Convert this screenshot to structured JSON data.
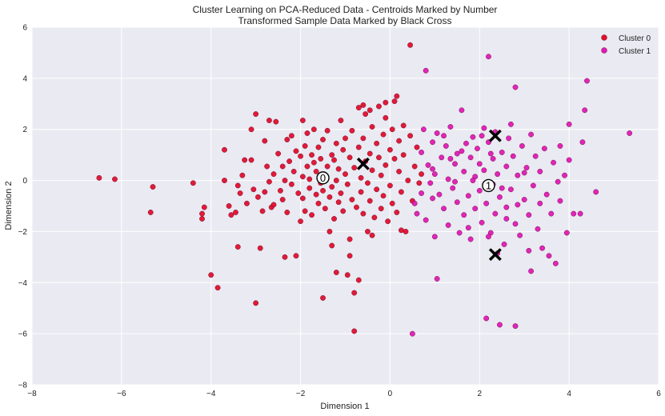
{
  "chart_data": {
    "type": "scatter",
    "title": "Cluster Learning on PCA-Reduced Data - Centroids Marked by Number",
    "subtitle": "Transformed Sample Data Marked by Black Cross",
    "xlabel": "Dimension 1",
    "ylabel": "Dimension 2",
    "xlim": [
      -8,
      6
    ],
    "ylim": [
      -8,
      6
    ],
    "xticks": [
      "−8",
      "−6",
      "−4",
      "−2",
      "0",
      "2",
      "4",
      "6"
    ],
    "yticks": [
      "−8",
      "−6",
      "−4",
      "−2",
      "0",
      "2",
      "4",
      "6"
    ],
    "xtick_values": [
      -8,
      -6,
      -4,
      -2,
      0,
      2,
      4,
      6
    ],
    "ytick_values": [
      -8,
      -6,
      -4,
      -2,
      0,
      2,
      4,
      6
    ],
    "grid": true,
    "legend_position": "top-right",
    "background": "#eaeaf2",
    "series": [
      {
        "name": "Cluster 0",
        "color": "#e0102b",
        "points": [
          [
            -6.5,
            0.1
          ],
          [
            -6.15,
            0.05
          ],
          [
            -5.3,
            -0.25
          ],
          [
            -5.35,
            -1.25
          ],
          [
            -4.4,
            -0.1
          ],
          [
            -4.2,
            -1.3
          ],
          [
            -4.2,
            -1.5
          ],
          [
            -4.15,
            -1.05
          ],
          [
            -4.0,
            -3.7
          ],
          [
            -3.85,
            -4.2
          ],
          [
            -3.7,
            1.2
          ],
          [
            -3.7,
            0.0
          ],
          [
            -3.6,
            -1.0
          ],
          [
            -3.55,
            -1.35
          ],
          [
            -3.45,
            -1.25
          ],
          [
            -3.4,
            -0.2
          ],
          [
            -3.4,
            -2.6
          ],
          [
            -3.3,
            0.2
          ],
          [
            -3.25,
            0.8
          ],
          [
            -3.2,
            -0.9
          ],
          [
            -3.1,
            0.8
          ],
          [
            -3.1,
            2.0
          ],
          [
            -3.05,
            -0.35
          ],
          [
            -3.0,
            -4.8
          ],
          [
            -3.0,
            2.6
          ],
          [
            -2.95,
            -0.65
          ],
          [
            -2.9,
            -2.65
          ],
          [
            -2.85,
            -1.2
          ],
          [
            -2.8,
            -0.45
          ],
          [
            -2.75,
            0.55
          ],
          [
            -2.7,
            2.35
          ],
          [
            -2.65,
            -1.05
          ],
          [
            -2.6,
            0.25
          ],
          [
            -2.6,
            -0.95
          ],
          [
            -2.55,
            2.3
          ],
          [
            -2.5,
            1.05
          ],
          [
            -2.45,
            -0.4
          ],
          [
            -2.4,
            0.55
          ],
          [
            -2.4,
            -0.75
          ],
          [
            -2.35,
            0.0
          ],
          [
            -2.3,
            -1.25
          ],
          [
            -2.3,
            1.6
          ],
          [
            -2.25,
            0.75
          ],
          [
            -2.2,
            1.75
          ],
          [
            -2.2,
            -0.15
          ],
          [
            -2.15,
            0.35
          ],
          [
            -2.1,
            1.15
          ],
          [
            -2.05,
            -0.5
          ],
          [
            -2.0,
            0.95
          ],
          [
            -2.0,
            -1.6
          ],
          [
            -1.95,
            0.15
          ],
          [
            -1.95,
            -0.7
          ],
          [
            -1.9,
            1.35
          ],
          [
            -1.9,
            -1.2
          ],
          [
            -1.85,
            0.55
          ],
          [
            -1.85,
            1.85
          ],
          [
            -1.8,
            -0.3
          ],
          [
            -1.8,
            0.05
          ],
          [
            -1.75,
            1.0
          ],
          [
            -1.75,
            -1.35
          ],
          [
            -1.7,
            0.7
          ],
          [
            -1.7,
            2.0
          ],
          [
            -1.65,
            -0.55
          ],
          [
            -1.65,
            0.35
          ],
          [
            -1.6,
            1.3
          ],
          [
            -1.6,
            -0.9
          ],
          [
            -1.55,
            0.85
          ],
          [
            -1.55,
            -0.1
          ],
          [
            -1.5,
            1.6
          ],
          [
            -1.5,
            -0.4
          ],
          [
            -1.45,
            0.2
          ],
          [
            -1.45,
            -1.1
          ],
          [
            -1.4,
            1.95
          ],
          [
            -1.4,
            0.55
          ],
          [
            -1.35,
            -0.65
          ],
          [
            -1.35,
            -2.0
          ],
          [
            -1.3,
            1.0
          ],
          [
            -1.3,
            -0.25
          ],
          [
            -1.25,
            0.8
          ],
          [
            -1.25,
            -1.5
          ],
          [
            -1.2,
            1.45
          ],
          [
            -1.2,
            0.0
          ],
          [
            -1.15,
            -0.85
          ],
          [
            -1.15,
            0.45
          ],
          [
            -1.1,
            2.35
          ],
          [
            -1.1,
            -0.5
          ],
          [
            -1.05,
            1.2
          ],
          [
            -1.05,
            -1.2
          ],
          [
            -1.0,
            0.25
          ],
          [
            -1.0,
            1.65
          ],
          [
            -0.95,
            -0.15
          ],
          [
            -0.95,
            -3.7
          ],
          [
            -0.9,
            0.9
          ],
          [
            -0.9,
            -2.3
          ],
          [
            -0.85,
            1.95
          ],
          [
            -0.85,
            -0.75
          ],
          [
            -0.8,
            0.5
          ],
          [
            -0.8,
            -4.4
          ],
          [
            -0.8,
            -5.9
          ],
          [
            -0.75,
            -1.05
          ],
          [
            -0.7,
            1.3
          ],
          [
            -0.7,
            2.85
          ],
          [
            -0.7,
            -3.9
          ],
          [
            -0.65,
            0.1
          ],
          [
            -0.65,
            -0.45
          ],
          [
            -0.6,
            1.65
          ],
          [
            -0.6,
            -1.3
          ],
          [
            -0.55,
            2.6
          ],
          [
            -0.55,
            0.75
          ],
          [
            -0.5,
            -2.0
          ],
          [
            -0.5,
            -0.1
          ],
          [
            -0.45,
            1.05
          ],
          [
            -0.45,
            -0.8
          ],
          [
            -0.4,
            2.1
          ],
          [
            -0.4,
            0.4
          ],
          [
            -0.35,
            -1.45
          ],
          [
            -0.3,
            1.45
          ],
          [
            -0.3,
            -0.35
          ],
          [
            -0.25,
            2.9
          ],
          [
            -0.25,
            0.9
          ],
          [
            -0.2,
            -1.1
          ],
          [
            -0.2,
            0.2
          ],
          [
            -0.15,
            1.8
          ],
          [
            -0.15,
            -0.6
          ],
          [
            -0.1,
            2.45
          ],
          [
            -0.1,
            0.6
          ],
          [
            -0.05,
            -1.6
          ],
          [
            0.0,
            1.2
          ],
          [
            0.0,
            -0.2
          ],
          [
            0.05,
            2.0
          ],
          [
            0.05,
            -0.9
          ],
          [
            0.1,
            0.85
          ],
          [
            0.1,
            3.1
          ],
          [
            0.15,
            -1.25
          ],
          [
            0.2,
            1.55
          ],
          [
            0.2,
            0.35
          ],
          [
            0.25,
            -0.45
          ],
          [
            0.3,
            2.15
          ],
          [
            0.3,
            1.0
          ],
          [
            0.35,
            -2.0
          ],
          [
            0.4,
            0.0
          ],
          [
            0.45,
            1.75
          ],
          [
            0.45,
            5.3
          ],
          [
            0.5,
            -0.8
          ],
          [
            0.55,
            0.55
          ],
          [
            0.6,
            1.3
          ],
          [
            0.65,
            -0.1
          ],
          [
            0.7,
            0.25
          ],
          [
            -1.5,
            -4.6
          ],
          [
            -2.35,
            -3.0
          ],
          [
            -2.1,
            -2.95
          ],
          [
            -1.2,
            -3.6
          ],
          [
            -0.9,
            -2.95
          ],
          [
            -1.3,
            -2.55
          ],
          [
            -0.4,
            -2.15
          ],
          [
            0.25,
            -1.95
          ],
          [
            -0.6,
            2.95
          ],
          [
            -0.45,
            2.75
          ],
          [
            0.15,
            3.3
          ],
          [
            -0.1,
            3.05
          ],
          [
            -2.8,
            1.55
          ],
          [
            -3.35,
            -0.5
          ],
          [
            -2.7,
            -0.05
          ],
          [
            -1.95,
            2.35
          ]
        ]
      },
      {
        "name": "Cluster 1",
        "color": "#e01ab4",
        "points": [
          [
            0.5,
            -6.0
          ],
          [
            0.55,
            -0.9
          ],
          [
            0.6,
            -1.3
          ],
          [
            0.7,
            -0.5
          ],
          [
            0.7,
            1.1
          ],
          [
            0.75,
            2.0
          ],
          [
            0.8,
            -1.55
          ],
          [
            0.8,
            4.3
          ],
          [
            0.85,
            0.6
          ],
          [
            0.9,
            -0.1
          ],
          [
            0.95,
            1.5
          ],
          [
            1.0,
            -2.2
          ],
          [
            1.0,
            0.25
          ],
          [
            1.05,
            -3.85
          ],
          [
            1.05,
            1.85
          ],
          [
            1.1,
            -0.55
          ],
          [
            1.15,
            0.9
          ],
          [
            1.2,
            -1.1
          ],
          [
            1.25,
            1.35
          ],
          [
            1.3,
            0.05
          ],
          [
            1.3,
            -1.75
          ],
          [
            1.35,
            2.1
          ],
          [
            1.4,
            -0.3
          ],
          [
            1.45,
            0.65
          ],
          [
            1.5,
            -0.85
          ],
          [
            1.5,
            1.05
          ],
          [
            1.55,
            -2.05
          ],
          [
            1.6,
            2.75
          ],
          [
            1.65,
            0.35
          ],
          [
            1.65,
            -1.35
          ],
          [
            1.7,
            1.45
          ],
          [
            1.75,
            -0.6
          ],
          [
            1.8,
            0.9
          ],
          [
            1.8,
            -2.3
          ],
          [
            1.85,
            1.7
          ],
          [
            1.9,
            0.15
          ],
          [
            1.9,
            -1.1
          ],
          [
            1.95,
            1.25
          ],
          [
            2.0,
            -0.4
          ],
          [
            2.0,
            0.65
          ],
          [
            2.05,
            -1.65
          ],
          [
            2.1,
            2.05
          ],
          [
            2.1,
            0.4
          ],
          [
            2.15,
            -0.9
          ],
          [
            2.15,
            -5.4
          ],
          [
            2.2,
            1.5
          ],
          [
            2.2,
            4.85
          ],
          [
            2.25,
            -2.05
          ],
          [
            2.3,
            0.85
          ],
          [
            2.3,
            -0.15
          ],
          [
            2.35,
            1.9
          ],
          [
            2.35,
            -1.3
          ],
          [
            2.4,
            0.25
          ],
          [
            2.45,
            -0.65
          ],
          [
            2.45,
            -5.65
          ],
          [
            2.5,
            1.1
          ],
          [
            2.55,
            -2.5
          ],
          [
            2.6,
            0.55
          ],
          [
            2.6,
            -1.05
          ],
          [
            2.65,
            1.65
          ],
          [
            2.7,
            -0.35
          ],
          [
            2.75,
            0.95
          ],
          [
            2.8,
            -1.7
          ],
          [
            2.8,
            3.65
          ],
          [
            2.8,
            -5.7
          ],
          [
            2.85,
            0.2
          ],
          [
            2.9,
            -2.15
          ],
          [
            2.95,
            1.35
          ],
          [
            3.0,
            -0.75
          ],
          [
            3.05,
            0.5
          ],
          [
            3.1,
            -1.35
          ],
          [
            3.15,
            -3.55
          ],
          [
            3.15,
            1.8
          ],
          [
            3.2,
            -0.2
          ],
          [
            3.25,
            0.95
          ],
          [
            3.3,
            -1.9
          ],
          [
            3.35,
            0.35
          ],
          [
            3.4,
            -2.65
          ],
          [
            3.45,
            1.25
          ],
          [
            3.5,
            -0.55
          ],
          [
            3.6,
            -1.3
          ],
          [
            3.65,
            0.7
          ],
          [
            3.7,
            -3.25
          ],
          [
            3.75,
            -0.05
          ],
          [
            3.8,
            1.35
          ],
          [
            3.9,
            0.2
          ],
          [
            3.95,
            -2.05
          ],
          [
            4.0,
            0.8
          ],
          [
            4.0,
            2.2
          ],
          [
            4.1,
            -1.3
          ],
          [
            4.25,
            -1.3
          ],
          [
            4.3,
            1.5
          ],
          [
            4.35,
            2.75
          ],
          [
            4.4,
            3.9
          ],
          [
            4.6,
            -0.45
          ],
          [
            5.35,
            1.85
          ],
          [
            1.2,
            1.75
          ],
          [
            1.6,
            1.15
          ],
          [
            2.05,
            1.75
          ],
          [
            2.25,
            1.05
          ],
          [
            2.7,
            2.2
          ],
          [
            3.0,
            0.3
          ],
          [
            1.45,
            -0.05
          ],
          [
            0.95,
            -0.7
          ],
          [
            2.6,
            -1.5
          ],
          [
            1.75,
            -1.85
          ],
          [
            2.2,
            -2.2
          ],
          [
            3.55,
            -2.95
          ],
          [
            3.1,
            -2.75
          ],
          [
            2.4,
            -2.85
          ],
          [
            0.95,
            0.45
          ],
          [
            1.35,
            0.85
          ],
          [
            1.85,
            0.0
          ],
          [
            2.5,
            -0.3
          ],
          [
            2.85,
            -0.95
          ],
          [
            3.35,
            -0.9
          ],
          [
            3.8,
            -0.8
          ]
        ]
      }
    ],
    "centroids": [
      {
        "label": "0",
        "x": -1.5,
        "y": 0.1
      },
      {
        "label": "1",
        "x": 2.2,
        "y": -0.2
      }
    ],
    "samples": [
      {
        "x": -0.6,
        "y": 0.65
      },
      {
        "x": 2.35,
        "y": 1.75
      },
      {
        "x": 2.35,
        "y": -2.9
      }
    ]
  }
}
